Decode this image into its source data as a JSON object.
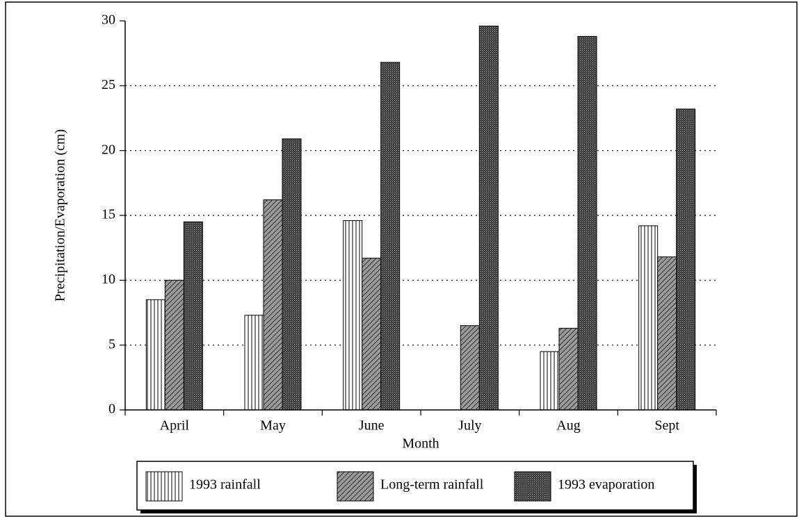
{
  "chart_data": {
    "type": "bar",
    "xlabel": "Month",
    "ylabel": "Precipitation/Evaporation (cm)",
    "categories": [
      "April",
      "May",
      "June",
      "July",
      "Aug",
      "Sept"
    ],
    "series": [
      {
        "name": "1993 rainfall",
        "color": "#ffffff",
        "values": [
          8.5,
          7.3,
          14.6,
          0,
          4.5,
          14.2
        ]
      },
      {
        "name": "Long-term rainfall",
        "color": "#9a9a9a",
        "values": [
          10.0,
          16.2,
          11.7,
          6.5,
          6.3,
          11.8
        ]
      },
      {
        "name": "1993 evaporation",
        "color": "#3a3a3a",
        "values": [
          14.5,
          20.9,
          26.8,
          29.6,
          28.8,
          23.2
        ]
      }
    ],
    "ylim": [
      0,
      30
    ],
    "yticks": [
      0,
      5,
      10,
      15,
      20,
      25,
      30
    ],
    "grid": true
  }
}
